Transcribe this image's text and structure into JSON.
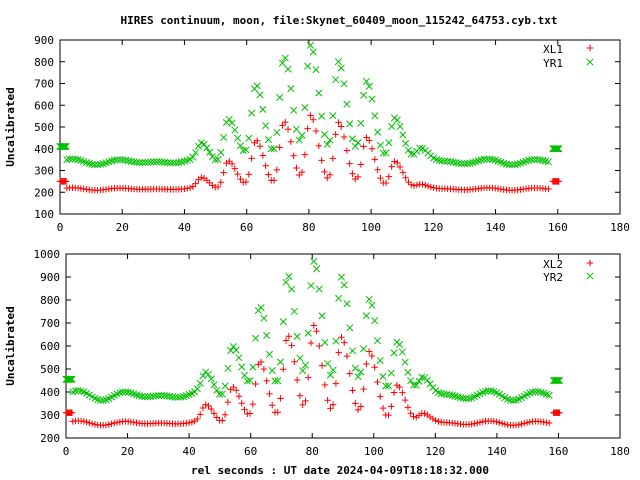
{
  "figure": {
    "title": "HIRES continuum, moon, file:Skynet_60409_moon_115242_64753.cyb.txt",
    "xlabel": "rel seconds : UT date 2024-04-09T18:18:32.000"
  },
  "colors": {
    "red": "#ff0000",
    "green": "#00c000",
    "axis": "#000000"
  },
  "chart_data": [
    {
      "type": "scatter",
      "ylabel": "Uncalibrated",
      "xlim": [
        0,
        180
      ],
      "ylim": [
        100,
        900
      ],
      "xticks": [
        0,
        20,
        40,
        60,
        80,
        100,
        120,
        140,
        160,
        180
      ],
      "yticks": [
        100,
        200,
        300,
        400,
        500,
        600,
        700,
        800,
        900
      ],
      "legend_position": "top-right",
      "grid": false,
      "series": [
        {
          "name": "XL1",
          "marker": "plus",
          "color": "#ff0000",
          "start": [
            0,
            250
          ],
          "end": [
            160,
            250
          ],
          "baseline": 215,
          "ripple": 6,
          "peaks": [
            [
              45.5,
              50
            ],
            [
              54,
              130
            ],
            [
              63,
              225
            ],
            [
              72,
              310
            ],
            [
              80.5,
              335
            ],
            [
              89.5,
              310
            ],
            [
              98.5,
              230
            ],
            [
              107.5,
              130
            ],
            [
              116,
              20
            ]
          ]
        },
        {
          "name": "YR1",
          "marker": "cross",
          "color": "#00c000",
          "start": [
            0,
            410
          ],
          "end": [
            160,
            400
          ],
          "baseline": 340,
          "ripple": 14,
          "peaks": [
            [
              45.5,
              80
            ],
            [
              54,
              200
            ],
            [
              63,
              355
            ],
            [
              72,
              480
            ],
            [
              80.5,
              530
            ],
            [
              89.5,
              470
            ],
            [
              98.5,
              355
            ],
            [
              107.5,
              210
            ],
            [
              116,
              60
            ]
          ]
        }
      ]
    },
    {
      "type": "scatter",
      "ylabel": "Uncalibrated",
      "xlim": [
        0,
        180
      ],
      "ylim": [
        200,
        1000
      ],
      "xticks": [
        0,
        20,
        40,
        60,
        80,
        100,
        120,
        140,
        160,
        180
      ],
      "yticks": [
        200,
        300,
        400,
        500,
        600,
        700,
        800,
        900,
        1000
      ],
      "legend_position": "top-right",
      "grid": false,
      "series": [
        {
          "name": "XL2",
          "marker": "plus",
          "color": "#ff0000",
          "start": [
            0,
            310
          ],
          "end": [
            160,
            310
          ],
          "baseline": 265,
          "ripple": 10,
          "peaks": [
            [
              45.5,
              75
            ],
            [
              54,
              160
            ],
            [
              63,
              270
            ],
            [
              72,
              380
            ],
            [
              80.5,
              420
            ],
            [
              89.5,
              380
            ],
            [
              98.5,
              300
            ],
            [
              107.5,
              170
            ],
            [
              116,
              40
            ]
          ]
        },
        {
          "name": "YR2",
          "marker": "cross",
          "color": "#00c000",
          "start": [
            0,
            455
          ],
          "end": [
            160,
            450
          ],
          "baseline": 385,
          "ripple": 22,
          "peaks": [
            [
              45.5,
              90
            ],
            [
              54,
              220
            ],
            [
              63,
              390
            ],
            [
              72,
              520
            ],
            [
              80.5,
              575
            ],
            [
              89.5,
              530
            ],
            [
              98.5,
              395
            ],
            [
              107.5,
              245
            ],
            [
              116,
              75
            ]
          ]
        }
      ]
    }
  ]
}
